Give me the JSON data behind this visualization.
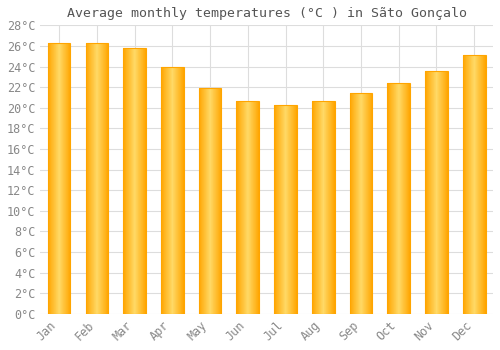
{
  "title": "Average monthly temperatures (°C ) in Sãto Gonçalo",
  "months": [
    "Jan",
    "Feb",
    "Mar",
    "Apr",
    "May",
    "Jun",
    "Jul",
    "Aug",
    "Sep",
    "Oct",
    "Nov",
    "Dec"
  ],
  "values": [
    26.3,
    26.3,
    25.8,
    24.0,
    21.9,
    20.7,
    20.3,
    20.7,
    21.4,
    22.4,
    23.6,
    25.1
  ],
  "bar_color_center": "#FFD966",
  "bar_color_edge": "#FFA500",
  "background_color": "#FFFFFF",
  "grid_color": "#DDDDDD",
  "text_color": "#888888",
  "title_color": "#555555",
  "ylim": [
    0,
    28
  ],
  "ytick_step": 2,
  "title_fontsize": 9.5,
  "tick_fontsize": 8.5,
  "bar_width": 0.6
}
